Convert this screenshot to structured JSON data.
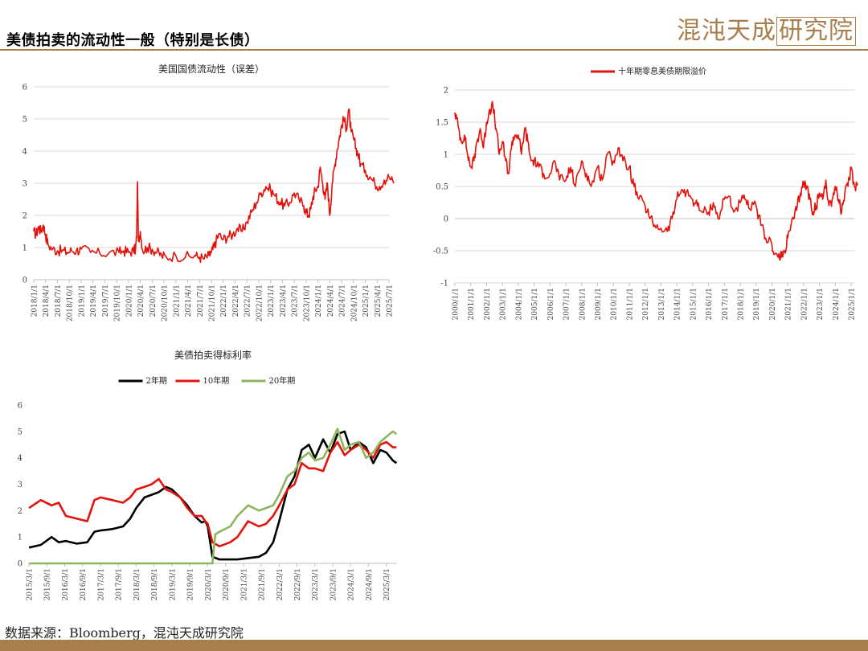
{
  "page": {
    "title": "美债拍卖的流动性一般（特别是长债）",
    "logo_text": "混沌天成",
    "logo_box_text": "研究院",
    "source": "数据来源：Bloomberg，混沌天成研究院",
    "accent_color": "#a87e4c"
  },
  "chart_data": [
    {
      "type": "line",
      "title": "美国国债流动性（误差）",
      "ylim": [
        0,
        6
      ],
      "yticks": [
        0,
        1,
        2,
        3,
        4,
        5,
        6
      ],
      "xticks": [
        "2018/1/1",
        "2018/4/1",
        "2018/7/1",
        "2018/10/1",
        "2019/1/1",
        "2019/4/1",
        "2019/7/1",
        "2019/10/1",
        "2020/1/1",
        "2020/4/1",
        "2020/7/1",
        "2020/10/1",
        "2021/1/1",
        "2021/4/1",
        "2021/7/1",
        "2021/10/1",
        "2022/1/1",
        "2022/4/1",
        "2022/7/1",
        "2022/10/1",
        "2023/1/1",
        "2023/4/1",
        "2023/7/1",
        "2023/10/1",
        "2024/1/1",
        "2024/4/1",
        "2024/7/1",
        "2024/10/1",
        "2025/1/1",
        "2025/4/1",
        "2025/7/1"
      ],
      "grid": true,
      "series": [
        {
          "color": "#e3120b",
          "x": [
            2018.0,
            2018.05,
            2018.1,
            2018.15,
            2018.2,
            2018.25,
            2018.3,
            2018.4,
            2018.5,
            2018.6,
            2018.7,
            2018.8,
            2018.9,
            2019.0,
            2019.2,
            2019.4,
            2019.6,
            2019.8,
            2019.9,
            2020.0,
            2020.1,
            2020.15,
            2020.17,
            2020.19,
            2020.21,
            2020.25,
            2020.3,
            2020.4,
            2020.5,
            2020.6,
            2020.7,
            2020.8,
            2021.0,
            2021.2,
            2021.4,
            2021.5,
            2021.6,
            2021.7,
            2021.75,
            2021.8,
            2021.85,
            2021.9,
            2022.0,
            2022.1,
            2022.2,
            2022.3,
            2022.4,
            2022.5,
            2022.6,
            2022.7,
            2022.8,
            2022.9,
            2023.0,
            2023.1,
            2023.2,
            2023.3,
            2023.4,
            2023.5,
            2023.6,
            2023.7,
            2023.75,
            2023.8,
            2023.85,
            2023.9,
            2023.95,
            2024.0,
            2024.05,
            2024.1,
            2024.15,
            2024.2,
            2024.25,
            2024.3,
            2024.35,
            2024.4,
            2024.45,
            2024.5,
            2024.55,
            2024.6,
            2024.65,
            2024.7,
            2024.75,
            2024.8,
            2024.85,
            2024.9,
            2025.0,
            2025.1,
            2025.2,
            2025.3,
            2025.4,
            2025.5,
            2025.6
          ],
          "y": [
            1.5,
            1.4,
            1.65,
            1.5,
            1.7,
            1.4,
            1.1,
            0.95,
            0.9,
            0.9,
            0.85,
            0.9,
            0.9,
            0.95,
            0.85,
            0.8,
            0.85,
            0.85,
            0.9,
            0.85,
            0.9,
            0.95,
            1.3,
            3.05,
            1.2,
            1.5,
            0.9,
            1.0,
            0.95,
            0.85,
            0.75,
            0.7,
            0.75,
            0.7,
            0.75,
            0.7,
            0.65,
            0.75,
            0.85,
            1.0,
            1.2,
            1.4,
            1.25,
            1.35,
            1.4,
            1.6,
            1.5,
            1.8,
            2.1,
            2.4,
            2.7,
            2.9,
            2.8,
            2.6,
            2.4,
            2.3,
            2.4,
            2.7,
            2.5,
            2.3,
            2.1,
            2.0,
            2.2,
            2.6,
            2.8,
            2.9,
            3.5,
            3.0,
            2.5,
            3.0,
            2.0,
            3.0,
            3.5,
            4.0,
            4.4,
            4.8,
            5.0,
            4.7,
            5.3,
            4.6,
            4.4,
            4.1,
            3.9,
            3.6,
            3.4,
            3.2,
            3.0,
            2.9,
            3.1,
            3.2,
            3.0
          ]
        }
      ]
    },
    {
      "type": "line",
      "title": "",
      "ylim": [
        -1,
        2
      ],
      "yticks": [
        -1,
        -0.5,
        0,
        0.5,
        1,
        1.5,
        2
      ],
      "xticks": [
        "2000/1/1",
        "2001/1/1",
        "2002/1/1",
        "2003/1/1",
        "2004/1/1",
        "2005/1/1",
        "2006/1/1",
        "2007/1/1",
        "2008/1/1",
        "2009/1/1",
        "2010/1/1",
        "2011/1/1",
        "2012/1/1",
        "2013/1/1",
        "2014/1/1",
        "2015/1/1",
        "2016/1/1",
        "2017/1/1",
        "2018/1/1",
        "2019/1/1",
        "2020/1/1",
        "2021/1/1",
        "2022/1/1",
        "2023/1/1",
        "2024/1/1",
        "2025/1/1"
      ],
      "legend": "top-center",
      "grid": true,
      "series": [
        {
          "name": "十年期零息美债期限溢价",
          "color": "#e3120b",
          "x": [
            2000.0,
            2000.2,
            2000.4,
            2000.6,
            2000.8,
            2001.0,
            2001.2,
            2001.4,
            2001.6,
            2001.8,
            2002.0,
            2002.2,
            2002.4,
            2002.6,
            2002.8,
            2003.0,
            2003.2,
            2003.4,
            2003.6,
            2003.8,
            2004.0,
            2004.2,
            2004.4,
            2004.6,
            2004.8,
            2005.0,
            2005.3,
            2005.6,
            2006.0,
            2006.3,
            2006.6,
            2007.0,
            2007.3,
            2007.6,
            2008.0,
            2008.3,
            2008.6,
            2009.0,
            2009.3,
            2009.6,
            2010.0,
            2010.3,
            2010.6,
            2011.0,
            2011.3,
            2011.6,
            2012.0,
            2012.3,
            2012.6,
            2013.0,
            2013.4,
            2013.7,
            2014.0,
            2014.3,
            2014.6,
            2015.0,
            2015.3,
            2015.6,
            2016.0,
            2016.3,
            2016.6,
            2017.0,
            2017.3,
            2017.6,
            2018.0,
            2018.3,
            2018.6,
            2019.0,
            2019.3,
            2019.6,
            2020.0,
            2020.2,
            2020.4,
            2020.6,
            2020.8,
            2021.0,
            2021.2,
            2021.4,
            2021.6,
            2021.8,
            2022.0,
            2022.2,
            2022.4,
            2022.6,
            2022.8,
            2023.0,
            2023.2,
            2023.4,
            2023.6,
            2023.8,
            2024.0,
            2024.2,
            2024.4,
            2024.6,
            2024.8,
            2025.0,
            2025.2,
            2025.4
          ],
          "y": [
            1.65,
            1.45,
            1.2,
            1.3,
            1.0,
            0.8,
            0.9,
            1.2,
            1.4,
            1.1,
            1.5,
            1.7,
            1.75,
            1.4,
            1.0,
            1.2,
            0.9,
            0.7,
            1.2,
            1.3,
            1.3,
            1.0,
            1.4,
            1.2,
            0.9,
            0.9,
            0.8,
            0.7,
            0.7,
            0.9,
            0.6,
            0.6,
            0.8,
            0.5,
            0.9,
            0.7,
            0.5,
            0.8,
            0.6,
            1.0,
            0.9,
            1.1,
            0.9,
            0.8,
            0.5,
            0.3,
            0.2,
            0.0,
            -0.1,
            -0.15,
            -0.2,
            0.0,
            0.3,
            0.45,
            0.4,
            0.3,
            0.2,
            0.1,
            0.1,
            0.25,
            0.0,
            0.3,
            0.35,
            0.1,
            0.25,
            0.3,
            0.15,
            0.2,
            -0.1,
            -0.3,
            -0.4,
            -0.55,
            -0.6,
            -0.6,
            -0.5,
            -0.3,
            -0.1,
            0.0,
            0.2,
            0.4,
            0.55,
            0.5,
            0.3,
            0.1,
            0.2,
            0.4,
            0.3,
            0.6,
            0.2,
            0.3,
            0.5,
            0.3,
            0.1,
            0.4,
            0.5,
            0.8,
            0.5,
            0.55
          ]
        }
      ]
    },
    {
      "type": "line",
      "title": "美债拍卖得标利率",
      "ylim": [
        0,
        6
      ],
      "yticks": [
        0,
        1,
        2,
        3,
        4,
        5,
        6
      ],
      "xticks": [
        "2015/3/1",
        "2015/9/1",
        "2016/3/1",
        "2016/9/1",
        "2017/3/1",
        "2017/9/1",
        "2018/3/1",
        "2018/9/1",
        "2019/3/1",
        "2019/9/1",
        "2020/3/1",
        "2020/9/1",
        "2021/3/1",
        "2021/9/1",
        "2022/3/1",
        "2022/9/1",
        "2023/3/1",
        "2023/9/1",
        "2024/3/1",
        "2024/9/1",
        "2025/3/1"
      ],
      "legend": "top-center",
      "grid": false,
      "series": [
        {
          "name": "2年期",
          "color": "#000000",
          "x": [
            2015.17,
            2015.5,
            2015.8,
            2016.0,
            2016.2,
            2016.5,
            2016.8,
            2017.0,
            2017.17,
            2017.5,
            2017.8,
            2018.0,
            2018.17,
            2018.4,
            2018.6,
            2018.8,
            2019.0,
            2019.17,
            2019.4,
            2019.6,
            2019.8,
            2020.0,
            2020.1,
            2020.17,
            2020.3,
            2020.5,
            2020.8,
            2021.0,
            2021.3,
            2021.6,
            2021.8,
            2022.0,
            2022.17,
            2022.4,
            2022.6,
            2022.8,
            2023.0,
            2023.17,
            2023.4,
            2023.6,
            2023.8,
            2024.0,
            2024.17,
            2024.4,
            2024.6,
            2024.8,
            2025.0,
            2025.17,
            2025.35,
            2025.45
          ],
          "y": [
            0.6,
            0.7,
            1.0,
            0.8,
            0.85,
            0.75,
            0.8,
            1.2,
            1.25,
            1.3,
            1.4,
            1.7,
            2.1,
            2.5,
            2.6,
            2.7,
            2.9,
            2.8,
            2.5,
            2.2,
            1.8,
            1.55,
            1.6,
            1.4,
            0.25,
            0.15,
            0.15,
            0.15,
            0.2,
            0.25,
            0.4,
            0.8,
            1.6,
            2.8,
            3.3,
            4.3,
            4.5,
            4.0,
            4.7,
            4.2,
            4.9,
            5.0,
            4.3,
            4.6,
            4.4,
            3.8,
            4.3,
            4.2,
            3.9,
            3.8
          ]
        },
        {
          "name": "10年期",
          "color": "#e3120b",
          "x": [
            2015.17,
            2015.5,
            2015.8,
            2016.0,
            2016.2,
            2016.5,
            2016.8,
            2017.0,
            2017.17,
            2017.5,
            2017.8,
            2018.0,
            2018.17,
            2018.4,
            2018.6,
            2018.8,
            2019.0,
            2019.17,
            2019.4,
            2019.6,
            2019.8,
            2020.0,
            2020.1,
            2020.17,
            2020.3,
            2020.5,
            2020.8,
            2021.0,
            2021.3,
            2021.6,
            2021.8,
            2022.0,
            2022.17,
            2022.4,
            2022.6,
            2022.8,
            2023.0,
            2023.17,
            2023.4,
            2023.6,
            2023.8,
            2024.0,
            2024.17,
            2024.4,
            2024.6,
            2024.8,
            2025.0,
            2025.17,
            2025.35,
            2025.45
          ],
          "y": [
            2.1,
            2.4,
            2.2,
            2.3,
            1.8,
            1.7,
            1.6,
            2.4,
            2.5,
            2.4,
            2.3,
            2.5,
            2.8,
            2.9,
            3.0,
            3.2,
            2.8,
            2.7,
            2.5,
            2.1,
            1.8,
            1.8,
            1.6,
            1.5,
            0.8,
            0.65,
            0.8,
            1.0,
            1.6,
            1.4,
            1.5,
            1.8,
            2.2,
            2.8,
            3.0,
            3.8,
            3.6,
            3.6,
            3.5,
            4.2,
            4.6,
            4.1,
            4.3,
            4.5,
            4.3,
            4.0,
            4.5,
            4.6,
            4.4,
            4.4
          ]
        },
        {
          "name": "20年期",
          "color": "#8db55c",
          "x": [
            2015.17,
            2016.0,
            2017.0,
            2018.0,
            2019.0,
            2020.0,
            2020.3,
            2020.38,
            2020.5,
            2020.8,
            2021.0,
            2021.3,
            2021.6,
            2021.8,
            2022.0,
            2022.17,
            2022.4,
            2022.6,
            2022.8,
            2023.0,
            2023.17,
            2023.4,
            2023.6,
            2023.8,
            2024.0,
            2024.17,
            2024.4,
            2024.6,
            2024.8,
            2025.0,
            2025.17,
            2025.35,
            2025.45
          ],
          "y": [
            0,
            0,
            0,
            0,
            0,
            0,
            0,
            1.1,
            1.2,
            1.4,
            1.8,
            2.2,
            2.0,
            2.1,
            2.2,
            2.6,
            3.3,
            3.5,
            4.0,
            4.2,
            3.9,
            4.0,
            4.5,
            5.1,
            4.3,
            4.5,
            4.6,
            4.0,
            4.2,
            4.6,
            4.8,
            5.0,
            4.9
          ]
        }
      ]
    }
  ]
}
